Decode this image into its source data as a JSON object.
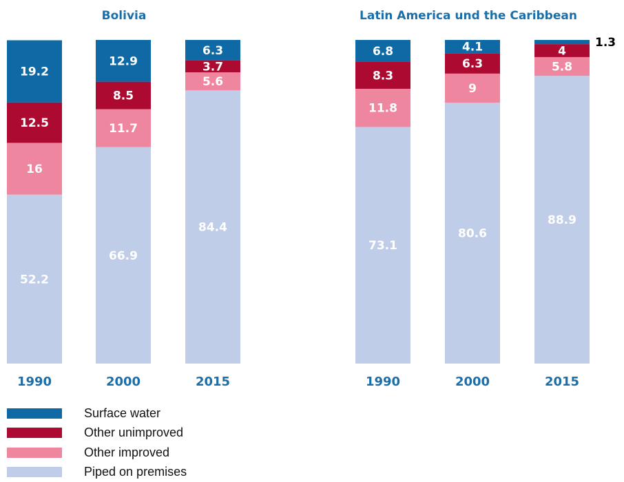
{
  "colors": {
    "surface": "#0e69a5",
    "unimproved": "#ad0a32",
    "improved": "#ef869f",
    "piped": "#bfcde8",
    "accent": "#1b6ea8"
  },
  "legend": [
    {
      "key": "surface",
      "label": "Surface water"
    },
    {
      "key": "unimproved",
      "label": "Other unimproved"
    },
    {
      "key": "improved",
      "label": "Other improved"
    },
    {
      "key": "piped",
      "label": "Piped on premises"
    }
  ],
  "chart_data": [
    {
      "type": "bar",
      "stacked": true,
      "title": "Bolivia",
      "categories": [
        "1990",
        "2000",
        "2015"
      ],
      "ylim": [
        0,
        100
      ],
      "series": [
        {
          "key": "piped",
          "name": "Piped on premises",
          "values": [
            52.2,
            66.9,
            84.4
          ]
        },
        {
          "key": "improved",
          "name": "Other improved",
          "values": [
            16,
            11.7,
            5.6
          ]
        },
        {
          "key": "unimproved",
          "name": "Other unimproved",
          "values": [
            12.5,
            8.5,
            3.7
          ]
        },
        {
          "key": "surface",
          "name": "Surface water",
          "values": [
            19.2,
            12.9,
            6.3
          ]
        }
      ]
    },
    {
      "type": "bar",
      "stacked": true,
      "title": "Latin America und the Caribbean",
      "categories": [
        "1990",
        "2000",
        "2015"
      ],
      "ylim": [
        0,
        100
      ],
      "series": [
        {
          "key": "piped",
          "name": "Piped on premises",
          "values": [
            73.1,
            80.6,
            88.9
          ]
        },
        {
          "key": "improved",
          "name": "Other improved",
          "values": [
            11.8,
            9,
            5.8
          ]
        },
        {
          "key": "unimproved",
          "name": "Other unimproved",
          "values": [
            8.3,
            6.3,
            4
          ]
        },
        {
          "key": "surface",
          "name": "Surface water",
          "values": [
            6.8,
            4.1,
            1.3
          ]
        }
      ]
    }
  ]
}
